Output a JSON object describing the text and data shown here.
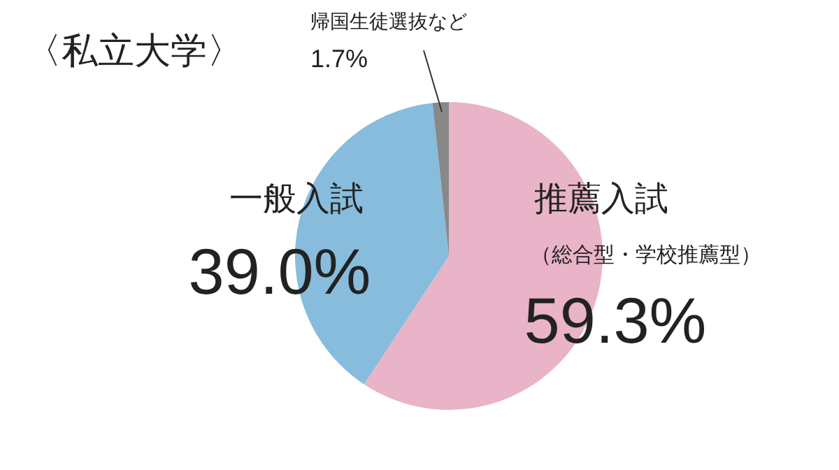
{
  "chart_data": {
    "type": "pie",
    "title": "〈私立大学〉",
    "categories": [
      "推薦入試",
      "一般入試",
      "帰国生徒選抜など"
    ],
    "values": [
      59.3,
      39.0,
      1.7
    ],
    "colors": [
      "#e9b3c8",
      "#87bcdc",
      "#888888"
    ],
    "value_labels": [
      "59.3%",
      "39.0%",
      "1.7%"
    ],
    "annotations": [
      "（総合型・学校推薦型）"
    ]
  }
}
